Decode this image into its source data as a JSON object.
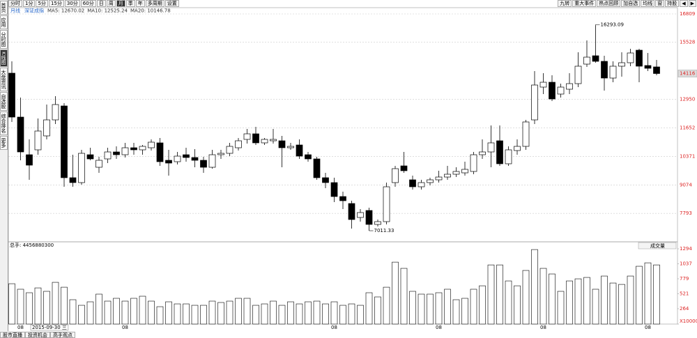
{
  "toolbar_left": [
    "分时",
    "1分",
    "5分",
    "15分",
    "30分",
    "60分",
    "日",
    "周",
    "月",
    "季",
    "年",
    "多周期",
    "设置"
  ],
  "toolbar_right": [
    "九转",
    "重大事件",
    "热点回顾",
    "加自选",
    "均线",
    "窗",
    "持股",
    "◀",
    "▶"
  ],
  "sidebar": [
    "首页",
    "应用",
    "分时图",
    "K线图",
    "大盘资讯",
    "自选股",
    "综合排名",
    "更多"
  ],
  "bottom_tabs": [
    "股市直播",
    "投资机会",
    "高手观点"
  ],
  "chart_data": [
    {
      "type": "candlestick",
      "period": "月线",
      "index_name": "深证成指",
      "ma_labels": [
        "MA5: 12670.02",
        "MA10: 12525.24",
        "MA20: 10146.78"
      ],
      "up_color": "#ffffff",
      "down_color": "#000000",
      "grid": true,
      "ylim": [
        6572,
        17061
      ],
      "yticks": [
        7793,
        9074,
        10371,
        11652,
        12950,
        15528,
        16809
      ],
      "candles": [
        [
          14132,
          14667,
          11927,
          12147
        ],
        [
          12147,
          13029,
          10194,
          10572
        ],
        [
          10446,
          11139,
          9312,
          9974
        ],
        [
          10667,
          12084,
          10446,
          11517
        ],
        [
          11297,
          12714,
          11139,
          12021
        ],
        [
          12021,
          13092,
          11832,
          12714
        ],
        [
          12651,
          12777,
          8997,
          9407
        ],
        [
          9407,
          10446,
          8997,
          9186
        ],
        [
          9186,
          10667,
          9092,
          10509
        ],
        [
          10446,
          10761,
          10194,
          10257
        ],
        [
          9879,
          10352,
          9627,
          10194
        ],
        [
          10257,
          10761,
          10068,
          10572
        ],
        [
          10572,
          10824,
          10257,
          10446
        ],
        [
          10446,
          10982,
          10320,
          10761
        ],
        [
          10761,
          10982,
          10446,
          10667
        ],
        [
          10667,
          10887,
          10446,
          10824
        ],
        [
          10761,
          11139,
          10635,
          11013
        ],
        [
          10982,
          11202,
          9942,
          10131
        ],
        [
          10194,
          10667,
          9501,
          10068
        ],
        [
          10131,
          10572,
          10005,
          10383
        ],
        [
          10446,
          10761,
          10131,
          10320
        ],
        [
          10320,
          10698,
          9879,
          10194
        ],
        [
          10194,
          10352,
          9627,
          9879
        ],
        [
          9879,
          10667,
          9816,
          10446
        ],
        [
          10446,
          10667,
          10257,
          10509
        ],
        [
          10509,
          10982,
          10383,
          10824
        ],
        [
          10761,
          11202,
          10635,
          11076
        ],
        [
          11139,
          11612,
          10950,
          11391
        ],
        [
          11391,
          11706,
          10887,
          10982
        ],
        [
          10982,
          11202,
          10887,
          11139
        ],
        [
          11076,
          11612,
          10950,
          11139
        ],
        [
          11076,
          11297,
          9879,
          10761
        ],
        [
          10761,
          10982,
          10667,
          10824
        ],
        [
          10887,
          11139,
          10257,
          10383
        ],
        [
          10446,
          10572,
          10131,
          10257
        ],
        [
          10257,
          10352,
          9312,
          9407
        ],
        [
          9407,
          9627,
          8934,
          9186
        ],
        [
          9186,
          9407,
          8304,
          8556
        ],
        [
          8556,
          8777,
          7989,
          8367
        ],
        [
          8241,
          8367,
          7107,
          7517
        ],
        [
          7611,
          7989,
          7422,
          7832
        ],
        [
          7926,
          8052,
          7011.33,
          7296
        ],
        [
          7296,
          7517,
          7202,
          7422
        ],
        [
          7422,
          9186,
          7296,
          8997
        ],
        [
          9186,
          9942,
          8997,
          9816
        ],
        [
          9942,
          10572,
          9627,
          9722
        ],
        [
          9312,
          9501,
          8871,
          8997
        ],
        [
          8997,
          9312,
          8871,
          9186
        ],
        [
          9186,
          9407,
          9060,
          9312
        ],
        [
          9312,
          9722,
          9186,
          9438
        ],
        [
          9438,
          9942,
          9312,
          9564
        ],
        [
          9564,
          9879,
          9438,
          9690
        ],
        [
          9627,
          10131,
          9501,
          9785
        ],
        [
          9690,
          10572,
          9564,
          10446
        ],
        [
          10446,
          11139,
          10257,
          10572
        ],
        [
          10572,
          11769,
          9879,
          10982
        ],
        [
          11076,
          11769,
          9942,
          10037
        ],
        [
          10037,
          10824,
          9942,
          10667
        ],
        [
          10635,
          11139,
          10446,
          10824
        ],
        [
          10824,
          12021,
          10667,
          11927
        ],
        [
          12021,
          14226,
          11832,
          13596
        ],
        [
          13502,
          14132,
          13187,
          13722
        ],
        [
          13722,
          14037,
          12872,
          12966
        ],
        [
          13187,
          13659,
          13029,
          13502
        ],
        [
          13407,
          14132,
          13187,
          13659
        ],
        [
          13659,
          15077,
          13502,
          14447
        ],
        [
          14541,
          15612,
          14415,
          14856
        ],
        [
          14919,
          16293.09,
          14604,
          14667
        ],
        [
          14667,
          14919,
          13344,
          13911
        ],
        [
          13911,
          14667,
          13722,
          14447
        ],
        [
          14447,
          15077,
          13974,
          14604
        ],
        [
          14604,
          15234,
          14447,
          15045
        ],
        [
          15171,
          15234,
          13722,
          14447
        ],
        [
          14478,
          15045,
          14226,
          14352
        ],
        [
          14415,
          14730,
          14037,
          14116
        ]
      ]
    },
    {
      "type": "bar",
      "volume_total_label": "总手: 4456880300",
      "indicator_button": "成交量",
      "cursor_label": "2015-09-30 三",
      "color": "#ffffff",
      "ylim": [
        0,
        1378
      ],
      "yticks": [
        {
          "value": 0,
          "label": "X10000"
        },
        264,
        521,
        779,
        1037,
        1294
      ],
      "categories": [
        null,
        "08",
        null,
        null,
        null,
        null,
        null,
        null,
        null,
        null,
        null,
        null,
        null,
        "08",
        null,
        null,
        null,
        null,
        null,
        null,
        null,
        null,
        null,
        null,
        null,
        null,
        null,
        null,
        null,
        null,
        null,
        null,
        null,
        null,
        null,
        null,
        null,
        "08",
        null,
        null,
        null,
        null,
        null,
        null,
        null,
        null,
        null,
        null,
        null,
        "08",
        null,
        null,
        null,
        null,
        null,
        null,
        null,
        null,
        null,
        null,
        null,
        "08",
        null,
        null,
        null,
        null,
        null,
        null,
        null,
        null,
        null,
        null,
        null,
        "08",
        null
      ],
      "values": [
        694,
        599,
        539,
        622,
        563,
        718,
        634,
        419,
        323,
        383,
        515,
        395,
        443,
        395,
        443,
        479,
        395,
        299,
        383,
        347,
        347,
        323,
        323,
        395,
        371,
        395,
        443,
        443,
        323,
        347,
        395,
        323,
        383,
        347,
        383,
        395,
        347,
        383,
        323,
        347,
        323,
        539,
        467,
        634,
        1065,
        958,
        563,
        515,
        515,
        539,
        599,
        419,
        443,
        599,
        658,
        1017,
        1017,
        742,
        658,
        922,
        1281,
        958,
        862,
        563,
        742,
        778,
        802,
        599,
        826,
        706,
        682,
        826,
        994,
        1053,
        1017
      ]
    }
  ]
}
